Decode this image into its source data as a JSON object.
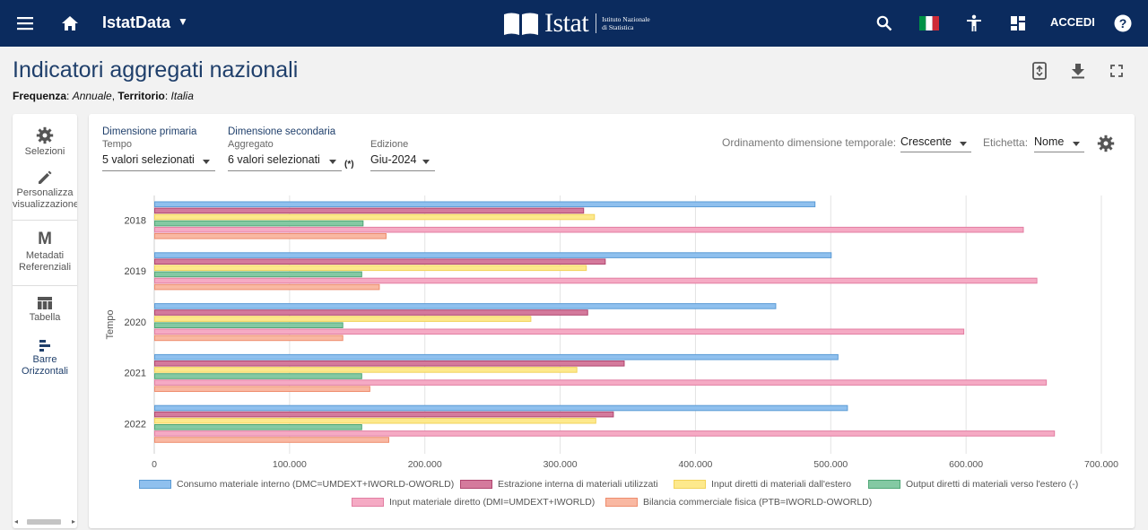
{
  "topbar": {
    "brand": "IstatData",
    "logo_word": "Istat",
    "logo_sub_line1": "Istituto Nazionale",
    "logo_sub_line2": "di Statistica",
    "login": "ACCEDI",
    "icons": [
      "menu-icon",
      "home-icon",
      "search-icon",
      "italian-flag-icon",
      "accessibility-icon",
      "dashboard-icon",
      "help-icon"
    ]
  },
  "header": {
    "title": "Indicatori aggregati nazionali",
    "freq_label": "Frequenza",
    "freq_value": "Annuale",
    "terr_label": "Territorio",
    "terr_value": "Italia"
  },
  "sidebar": {
    "items": [
      {
        "label1": "Selezioni",
        "label2": "",
        "icon": "gear-icon"
      },
      {
        "label1": "Personalizza",
        "label2": "visualizzazione",
        "icon": "pencil-icon"
      },
      {
        "label1": "Metadati",
        "label2": "Referenziali",
        "icon": "metadata-icon"
      },
      {
        "label1": "Tabella",
        "label2": "",
        "icon": "table-icon"
      },
      {
        "label1": "Barre",
        "label2": "Orizzontali",
        "icon": "horizontal-bars-icon"
      }
    ],
    "metadata_glyph": "M"
  },
  "controls": {
    "primary_title": "Dimensione primaria",
    "primary_sub": "Tempo",
    "primary_value": "5 valori selezionati",
    "secondary_title": "Dimensione secondaria",
    "secondary_sub": "Aggregato",
    "secondary_value": "6 valori selezionati",
    "secondary_mark": "(*)",
    "edition_label": "Edizione",
    "edition_value": "Giu-2024",
    "sort_label": "Ordinamento dimensione temporale:",
    "sort_value": "Crescente",
    "label_label": "Etichetta:",
    "label_value": "Nome"
  },
  "chart_data": {
    "type": "bar",
    "orientation": "horizontal",
    "ylabel": "Tempo",
    "categories": [
      "2018",
      "2019",
      "2020",
      "2021",
      "2022"
    ],
    "xlim": [
      0,
      700000
    ],
    "xticks": [
      "0",
      "100.000",
      "200.000",
      "300.000",
      "400.000",
      "500.000",
      "600.000",
      "700.000"
    ],
    "grid": true,
    "legend_position": "bottom",
    "series": [
      {
        "name": "Consumo materiale interno (DMC=UMDEXT+IWORLD-OWORLD)",
        "color": "#8fc0ee",
        "stroke": "#5b9bd5",
        "values": [
          488000,
          500000,
          459000,
          505000,
          512000
        ]
      },
      {
        "name": "Estrazione interna di materiali utilizzati",
        "color": "#d47a9c",
        "stroke": "#b0456f",
        "values": [
          317000,
          333000,
          320000,
          347000,
          339000
        ]
      },
      {
        "name": "Input diretti di materiali dall'estero",
        "color": "#fde98c",
        "stroke": "#f2d35a",
        "values": [
          325000,
          319000,
          278000,
          312000,
          326000
        ]
      },
      {
        "name": "Output diretti di materiali verso l'estero (-)",
        "color": "#84c9a3",
        "stroke": "#4fa776",
        "values": [
          154000,
          153000,
          139000,
          153000,
          153000
        ]
      },
      {
        "name": "Input materiale diretto (DMI=UMDEXT+IWORLD)",
        "color": "#f5aac4",
        "stroke": "#e27ea2",
        "values": [
          642000,
          652000,
          598000,
          659000,
          665000
        ]
      },
      {
        "name": "Bilancia commerciale fisica (PTB=IWORLD-OWORLD)",
        "color": "#f9b8a2",
        "stroke": "#ee8d6e",
        "values": [
          171000,
          166000,
          139000,
          159000,
          173000
        ]
      }
    ]
  }
}
